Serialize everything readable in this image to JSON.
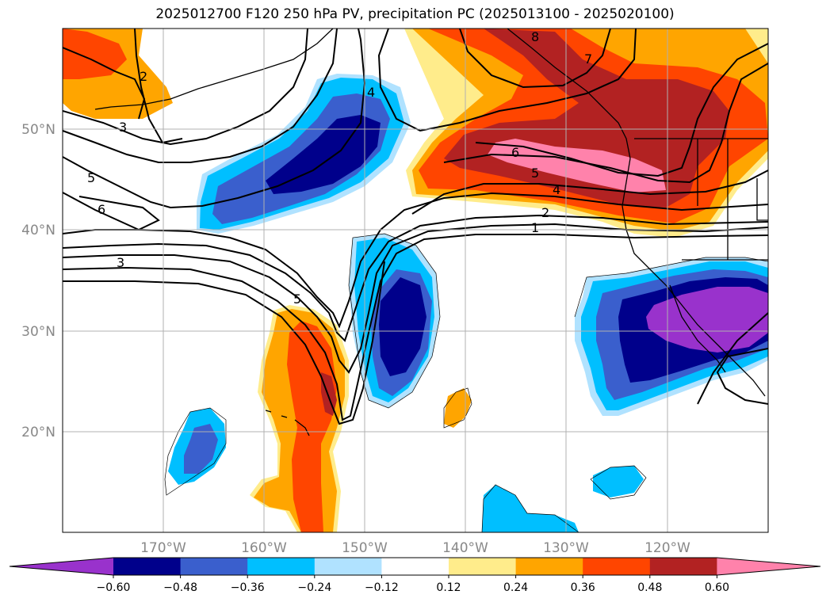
{
  "title": "2025012700 F120 250 hPa PV, precipitation PC (2025013100 - 2025020100)",
  "lat_labels": [
    "50°N",
    "40°N",
    "30°N",
    "20°N"
  ],
  "lon_labels": [
    "170°W",
    "160°W",
    "150°W",
    "140°W",
    "130°W",
    "120°W"
  ],
  "colorbar": {
    "tick_labels": [
      "−0.60",
      "−0.48",
      "−0.36",
      "−0.24",
      "−0.12",
      "0.12",
      "0.24",
      "0.36",
      "0.48",
      "0.60"
    ],
    "colors": [
      "#9932cc",
      "#00008b",
      "#3a5fcd",
      "#00bfff",
      "#b0e2ff",
      "#ffffff",
      "#ffec8b",
      "#ffa500",
      "#ff4500",
      "#b22222",
      "#ff82ab"
    ]
  },
  "contour_labels": [
    "8",
    "7",
    "6",
    "5",
    "4",
    "2",
    "1",
    "4",
    "2",
    "3",
    "5",
    "6",
    "3",
    "5"
  ],
  "map_extent": {
    "lon": [
      -180,
      -110
    ],
    "lat": [
      10,
      60
    ]
  }
}
